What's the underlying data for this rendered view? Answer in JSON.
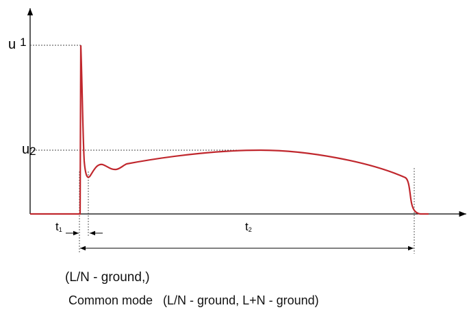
{
  "diagram": {
    "labels": {
      "u1_base": "u",
      "u1_sub": "1",
      "u2_base": "u",
      "u2_sub": "2",
      "t1_base": "t",
      "t1_sub": "1",
      "t2_base": "t",
      "t2_sub": "2"
    },
    "captions": {
      "line1": "(L/N - ground,)",
      "line2": "Common mode   (L/N - ground, L+N - ground)"
    },
    "colors": {
      "waveform": "#c0272d",
      "axes": "#000000",
      "guides": "#555555"
    }
  }
}
